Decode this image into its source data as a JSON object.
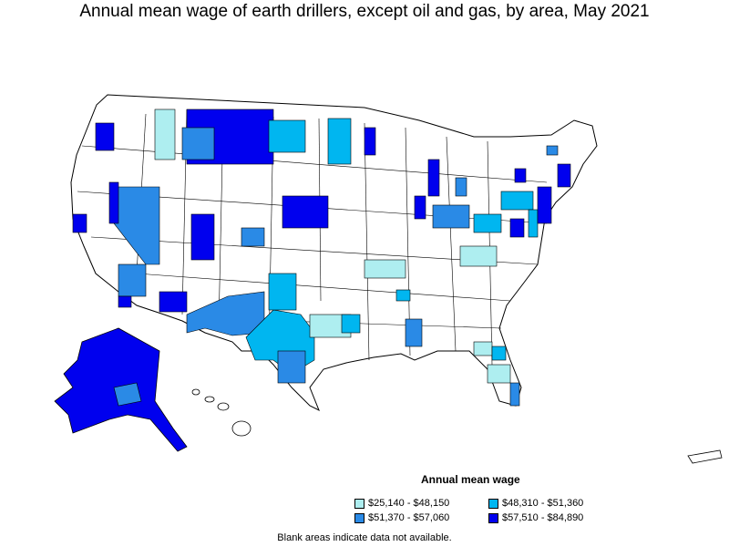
{
  "title": "Annual mean wage of earth drillers, except oil and gas, by area, May 2021",
  "legend": {
    "title": "Annual mean wage",
    "items": [
      {
        "label": "$25,140 - $48,150",
        "color": "#aeeef0"
      },
      {
        "label": "$48,310 - $51,360",
        "color": "#00b6f0"
      },
      {
        "label": "$51,370 - $57,060",
        "color": "#2a8ae6"
      },
      {
        "label": "$57,510 - $84,890",
        "color": "#0000ee"
      }
    ]
  },
  "footnote": "Blank areas indicate data not available."
}
